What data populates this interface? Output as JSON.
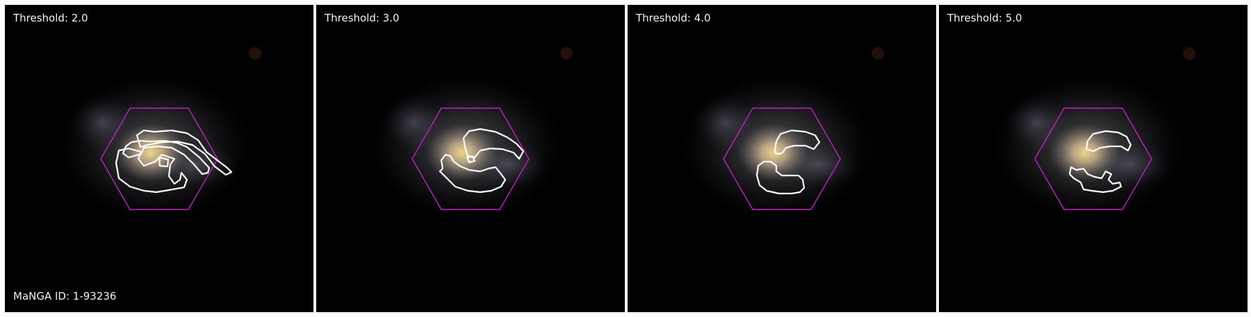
{
  "panels": [
    {
      "label": "Threshold: 2.0"
    },
    {
      "label": "Threshold: 3.0"
    },
    {
      "label": "Threshold: 4.0"
    },
    {
      "label": "Threshold: 5.0"
    }
  ],
  "manga_id_label": "MaNGA ID: 1-93236",
  "colors": {
    "hexagon": "#c020c0",
    "contour": "#ffffff",
    "background": "#000000"
  }
}
